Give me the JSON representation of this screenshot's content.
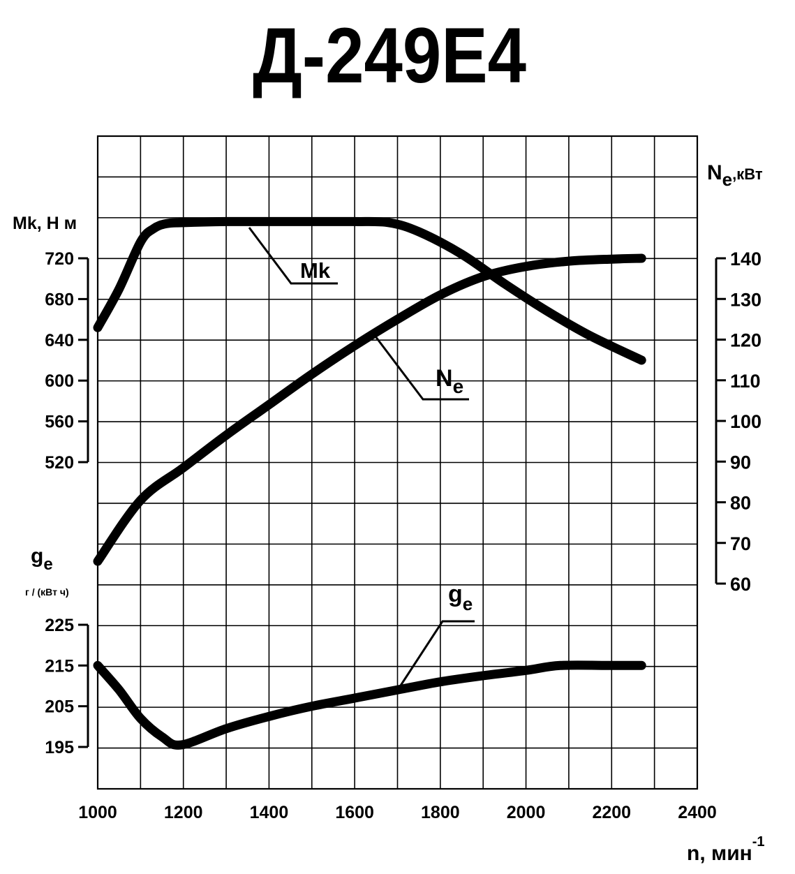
{
  "chart_data": {
    "type": "line",
    "title": "Д-249Е4",
    "x_axis": {
      "label_main": "n, мин",
      "label_sup": "-1",
      "ticks": [
        "1000",
        "1200",
        "1400",
        "1600",
        "1800",
        "2000",
        "2200",
        "2400"
      ],
      "range": [
        1000,
        2400
      ]
    },
    "axes": {
      "torque": {
        "label": "Mk, Н м",
        "ticks": [
          "720",
          "680",
          "640",
          "600",
          "560",
          "520"
        ],
        "range": [
          520,
          720
        ]
      },
      "power": {
        "label_main": "N",
        "label_sub": "e",
        "label_unit": ",кВт",
        "ticks": [
          "140",
          "130",
          "120",
          "110",
          "100",
          "90",
          "80",
          "70",
          "60"
        ],
        "range": [
          60,
          140
        ]
      },
      "consumption": {
        "label_main": "g",
        "label_sub": "e",
        "label_unit": "г / (кВт ч)",
        "ticks": [
          "225",
          "215",
          "205",
          "195"
        ],
        "range": [
          195,
          225
        ]
      }
    },
    "grid": true,
    "series": [
      {
        "name": "Mk",
        "name_main": "Mk",
        "axis": "torque",
        "x": [
          1000,
          1050,
          1100,
          1130,
          1160,
          1200,
          1300,
          1400,
          1500,
          1600,
          1680,
          1750,
          1850,
          1950,
          2050,
          2150,
          2270
        ],
        "y": [
          652,
          690,
          736,
          749,
          754,
          755,
          756,
          756,
          756,
          756,
          755,
          746,
          724,
          695,
          668,
          644,
          620
        ]
      },
      {
        "name": "Ne",
        "name_main": "N",
        "name_sub": "e",
        "axis": "power",
        "x": [
          1000,
          1100,
          1200,
          1300,
          1400,
          1500,
          1600,
          1700,
          1800,
          1900,
          2000,
          2100,
          2200,
          2270
        ],
        "y": [
          65.5,
          80.5,
          88.5,
          96.5,
          104,
          111.5,
          118.5,
          125,
          131,
          135.5,
          138,
          139.3,
          139.8,
          140
        ]
      },
      {
        "name": "ge",
        "name_main": "g",
        "name_sub": "e",
        "axis": "consumption",
        "x": [
          1000,
          1050,
          1100,
          1150,
          1195,
          1300,
          1400,
          1500,
          1600,
          1700,
          1800,
          1900,
          2000,
          2080,
          2200,
          2270
        ],
        "y": [
          215,
          209,
          202,
          197.5,
          195.5,
          199.5,
          202.5,
          205,
          207,
          209,
          211,
          212.5,
          213.8,
          215,
          215,
          215
        ]
      }
    ]
  }
}
